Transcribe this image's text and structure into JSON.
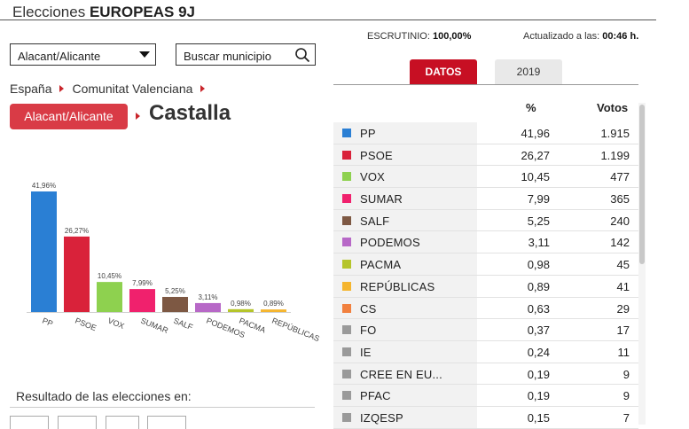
{
  "header": {
    "prefix": "Elecciones",
    "title": "EUROPEAS 9J"
  },
  "filters": {
    "province_select": "Alacant/Alicante",
    "search_placeholder": "Buscar municipio"
  },
  "breadcrumb": {
    "items": [
      "España",
      "Comunitat Valenciana"
    ],
    "province": "Alacant/Alicante",
    "municipality": "Castalla"
  },
  "status": {
    "scrutiny_label": "ESCRUTINIO:",
    "scrutiny_value": "100,00%",
    "updated_label": "Actualizado a las:",
    "updated_value": "00:46 h."
  },
  "tabs": [
    {
      "label": "DATOS"
    },
    {
      "label": "2019"
    }
  ],
  "table": {
    "headers": {
      "percent": "%",
      "votes": "Votos"
    },
    "rows": [
      {
        "party": "PP",
        "percent": "41,96",
        "votes": "1.915",
        "color": "#2a7fd4"
      },
      {
        "party": "PSOE",
        "percent": "26,27",
        "votes": "1.199",
        "color": "#d9223a"
      },
      {
        "party": "VOX",
        "percent": "10,45",
        "votes": "477",
        "color": "#8ed14f"
      },
      {
        "party": "SUMAR",
        "percent": "7,99",
        "votes": "365",
        "color": "#f0216d"
      },
      {
        "party": "SALF",
        "percent": "5,25",
        "votes": "240",
        "color": "#7d5843"
      },
      {
        "party": "PODEMOS",
        "percent": "3,11",
        "votes": "142",
        "color": "#b768c7"
      },
      {
        "party": "PACMA",
        "percent": "0,98",
        "votes": "45",
        "color": "#b5c52a"
      },
      {
        "party": "REPÚBLICAS",
        "percent": "0,89",
        "votes": "41",
        "color": "#f5b52e"
      },
      {
        "party": "CS",
        "percent": "0,63",
        "votes": "29",
        "color": "#f1803e"
      },
      {
        "party": "FO",
        "percent": "0,37",
        "votes": "17",
        "color": "#9a9a9a"
      },
      {
        "party": "IE",
        "percent": "0,24",
        "votes": "11",
        "color": "#9a9a9a"
      },
      {
        "party": "CREE EN EU...",
        "percent": "0,19",
        "votes": "9",
        "color": "#9a9a9a"
      },
      {
        "party": "PFAC",
        "percent": "0,19",
        "votes": "9",
        "color": "#9a9a9a"
      },
      {
        "party": "IZQESP",
        "percent": "0,15",
        "votes": "7",
        "color": "#9a9a9a"
      }
    ]
  },
  "results_section": {
    "title": "Resultado de las elecciones en:"
  },
  "chart_data": {
    "type": "bar",
    "categories": [
      "PP",
      "PSOE",
      "VOX",
      "SUMAR",
      "SALF",
      "PODEMOS",
      "PACMA",
      "REPÚBLICAS"
    ],
    "values": [
      41.96,
      26.27,
      10.45,
      7.99,
      5.25,
      3.11,
      0.98,
      0.89
    ],
    "labels": [
      "41,96%",
      "26,27%",
      "10,45%",
      "7,99%",
      "5,25%",
      "3,11%",
      "0,98%",
      "0,89%"
    ],
    "colors": [
      "#2a7fd4",
      "#d9223a",
      "#8ed14f",
      "#f0216d",
      "#7d5843",
      "#b768c7",
      "#b5c52a",
      "#f5b52e"
    ],
    "ylim": [
      0,
      41.96
    ],
    "grid": false
  }
}
